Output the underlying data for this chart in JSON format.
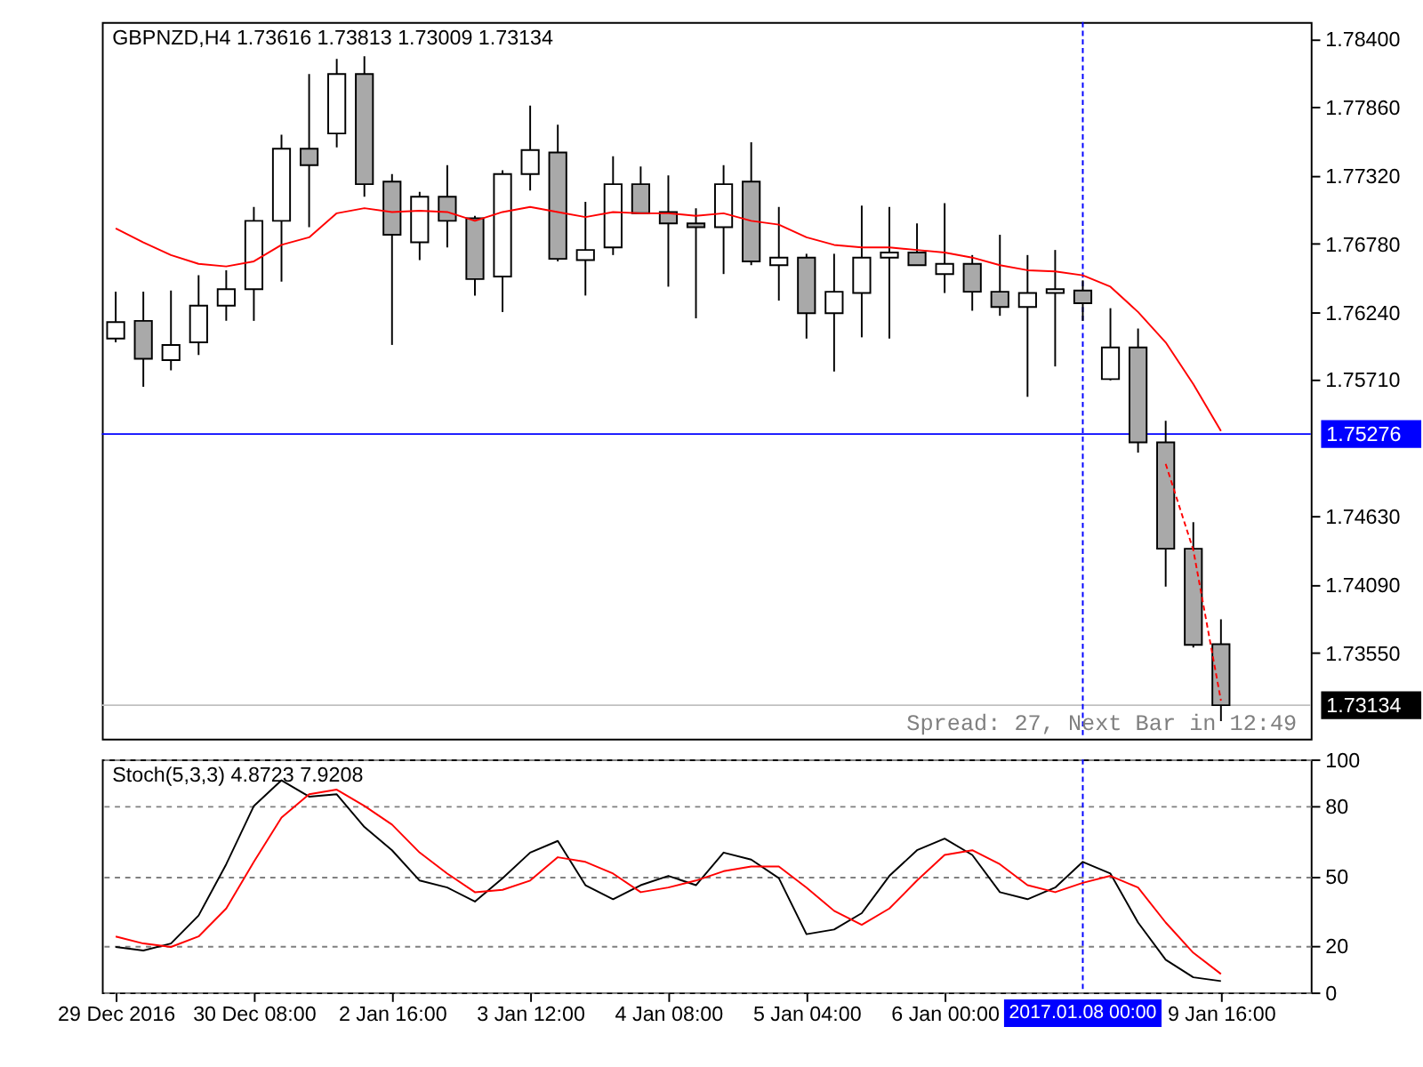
{
  "chart_data": [
    {
      "type": "candlestick",
      "title": "GBPNZD,H4  1.73616 1.73813 1.73009 1.73134",
      "categories": [
        "29 Dec 2016",
        null,
        null,
        null,
        null,
        "30 Dec 08:00",
        null,
        null,
        null,
        null,
        "2 Jan 16:00",
        null,
        null,
        null,
        null,
        "3 Jan 12:00",
        null,
        null,
        null,
        null,
        "4 Jan 08:00",
        null,
        null,
        null,
        null,
        "5 Jan 04:00",
        null,
        null,
        null,
        null,
        "6 Jan 00:00",
        null,
        null,
        null,
        null,
        "2017.01.08 00:00",
        null,
        null,
        null,
        null,
        "9 Jan 16:00"
      ],
      "ohlc": [
        [
          1.7603,
          1.764,
          1.76,
          1.7616
        ],
        [
          1.7617,
          1.764,
          1.7565,
          1.7587
        ],
        [
          1.7586,
          1.7641,
          1.7578,
          1.7598
        ],
        [
          1.76,
          1.7653,
          1.759,
          1.7629
        ],
        [
          1.7629,
          1.7657,
          1.7617,
          1.7642
        ],
        [
          1.7642,
          1.7707,
          1.7617,
          1.7696
        ],
        [
          1.7696,
          1.7764,
          1.7648,
          1.7753
        ],
        [
          1.7753,
          1.7812,
          1.7691,
          1.774
        ],
        [
          1.7765,
          1.7824,
          1.7754,
          1.7812
        ],
        [
          1.7812,
          1.7826,
          1.7715,
          1.7725
        ],
        [
          1.7727,
          1.7733,
          1.7598,
          1.7685
        ],
        [
          1.7679,
          1.7719,
          1.7665,
          1.7715
        ],
        [
          1.7715,
          1.774,
          1.7675,
          1.7696
        ],
        [
          1.7698,
          1.77,
          1.7637,
          1.765
        ],
        [
          1.7652,
          1.7736,
          1.7624,
          1.7733
        ],
        [
          1.7733,
          1.7787,
          1.772,
          1.7752
        ],
        [
          1.775,
          1.7772,
          1.7664,
          1.7666
        ],
        [
          1.7665,
          1.7711,
          1.7637,
          1.7673
        ],
        [
          1.7675,
          1.7747,
          1.7669,
          1.7725
        ],
        [
          1.7725,
          1.7739,
          1.7702,
          1.7702
        ],
        [
          1.7703,
          1.7732,
          1.7644,
          1.7694
        ],
        [
          1.7694,
          1.7706,
          1.7619,
          1.7691
        ],
        [
          1.7691,
          1.774,
          1.7654,
          1.7725
        ],
        [
          1.7727,
          1.7758,
          1.7661,
          1.7664
        ],
        [
          1.7661,
          1.7707,
          1.7633,
          1.7667
        ],
        [
          1.7667,
          1.767,
          1.7603,
          1.7623
        ],
        [
          1.7623,
          1.767,
          1.7577,
          1.764
        ],
        [
          1.7639,
          1.7708,
          1.7604,
          1.7667
        ],
        [
          1.7667,
          1.7707,
          1.7603,
          1.7671
        ],
        [
          1.7671,
          1.7694,
          1.7661,
          1.7661
        ],
        [
          1.7654,
          1.771,
          1.7639,
          1.7662
        ],
        [
          1.7662,
          1.7669,
          1.7625,
          1.764
        ],
        [
          1.764,
          1.7685,
          1.7621,
          1.7628
        ],
        [
          1.7628,
          1.7669,
          1.7557,
          1.7639
        ],
        [
          1.7639,
          1.7673,
          1.7581,
          1.7642
        ],
        [
          1.7641,
          1.7649,
          1.7617,
          1.7631
        ],
        [
          1.7571,
          1.7627,
          1.757,
          1.7596
        ],
        [
          1.7596,
          1.7611,
          1.7513,
          1.7521
        ],
        [
          1.7521,
          1.7538,
          1.7407,
          1.7437
        ],
        [
          1.7437,
          1.7458,
          1.7359,
          1.7361
        ],
        [
          1.73616,
          1.73813,
          1.73009,
          1.73134
        ]
      ],
      "series": [
        {
          "type": "line",
          "color": "#ff0000",
          "values": [
            1.769,
            1.7679,
            1.7669,
            1.7662,
            1.766,
            1.7664,
            1.7677,
            1.7683,
            1.7702,
            1.7706,
            1.7703,
            1.7704,
            1.7703,
            1.7696,
            1.7703,
            1.7707,
            1.7703,
            1.7699,
            1.7703,
            1.7702,
            1.7702,
            1.77,
            1.7702,
            1.7696,
            1.7693,
            1.7683,
            1.7677,
            1.7675,
            1.7675,
            1.7673,
            1.7671,
            1.7667,
            1.7661,
            1.7657,
            1.7656,
            1.7653,
            1.7644,
            1.7624,
            1.76,
            1.7567,
            1.753
          ]
        },
        {
          "type": "line",
          "color": "#ff0000",
          "line_style": "dashed",
          "values": [
            null,
            null,
            null,
            null,
            null,
            null,
            null,
            null,
            null,
            null,
            null,
            null,
            null,
            null,
            null,
            null,
            null,
            null,
            null,
            null,
            null,
            null,
            null,
            null,
            null,
            null,
            null,
            null,
            null,
            null,
            null,
            null,
            null,
            null,
            null,
            null,
            null,
            null,
            1.7504,
            1.7436,
            1.7317
          ]
        }
      ],
      "ylim": [
        1.7287,
        1.7853
      ],
      "yticks": [
        {
          "value": 1.784,
          "label": "1.78400"
        },
        {
          "value": 1.7786,
          "label": "1.77860"
        },
        {
          "value": 1.7732,
          "label": "1.77320"
        },
        {
          "value": 1.7678,
          "label": "1.76780"
        },
        {
          "value": 1.7624,
          "label": "1.76240"
        },
        {
          "value": 1.7571,
          "label": "1.75710"
        },
        {
          "value": 1.7463,
          "label": "1.74630"
        },
        {
          "value": 1.7409,
          "label": "1.74090"
        },
        {
          "value": 1.7355,
          "label": "1.73550"
        }
      ],
      "ref_lines": [
        {
          "axis": "y",
          "value": 1.75276,
          "label": "1.75276",
          "color": "#0000ff"
        },
        {
          "axis": "y",
          "value": 1.73134,
          "label": "1.73134",
          "color": "#c0c0c0"
        },
        {
          "axis": "x",
          "value": "2017.01.08 00:00",
          "color": "#0000ff",
          "line_style": "dashed"
        }
      ],
      "annotations": [
        "Spread: 27, Next Bar in 12:49"
      ],
      "tick_labels": "y"
    },
    {
      "type": "line",
      "title": "Stoch(5,3,3) 4.8723 7.9208",
      "categories": [
        "29 Dec 2016",
        null,
        null,
        null,
        null,
        "30 Dec 08:00",
        null,
        null,
        null,
        null,
        "2 Jan 16:00",
        null,
        null,
        null,
        null,
        "3 Jan 12:00",
        null,
        null,
        null,
        null,
        "4 Jan 08:00",
        null,
        null,
        null,
        null,
        "5 Jan 04:00",
        null,
        null,
        null,
        null,
        "6 Jan 00:00",
        null,
        null,
        null,
        null,
        "2017.01.08 00:00",
        null,
        null,
        null,
        null,
        "9 Jan 16:00"
      ],
      "series": [
        {
          "color": "#000000",
          "values": [
            19.5,
            18,
            21,
            33,
            55,
            80,
            91,
            84,
            85,
            71,
            61,
            48,
            45,
            39,
            49,
            60,
            65,
            46,
            40,
            46,
            50,
            46,
            60,
            57,
            49,
            25,
            27,
            34,
            50,
            61,
            66,
            59,
            43,
            40,
            45,
            56,
            51,
            30,
            14,
            6.5,
            4.8723
          ]
        },
        {
          "color": "#ff0000",
          "values": [
            24,
            21,
            19.5,
            24,
            36,
            56,
            75,
            85,
            87,
            80,
            72,
            60,
            51,
            43,
            44,
            48,
            58,
            56,
            51,
            43,
            45,
            48,
            52,
            54,
            54,
            45,
            35,
            29,
            36,
            48,
            59,
            61,
            55,
            46,
            43,
            47,
            50,
            45,
            30,
            17,
            7.9208
          ]
        }
      ],
      "ylim": [
        0,
        100
      ],
      "yticks": [
        0,
        20,
        50,
        80,
        100
      ],
      "grid": "y",
      "ref_lines": [
        {
          "axis": "x",
          "value": "2017.01.08 00:00",
          "color": "#0000ff",
          "line_style": "dashed"
        }
      ]
    }
  ]
}
